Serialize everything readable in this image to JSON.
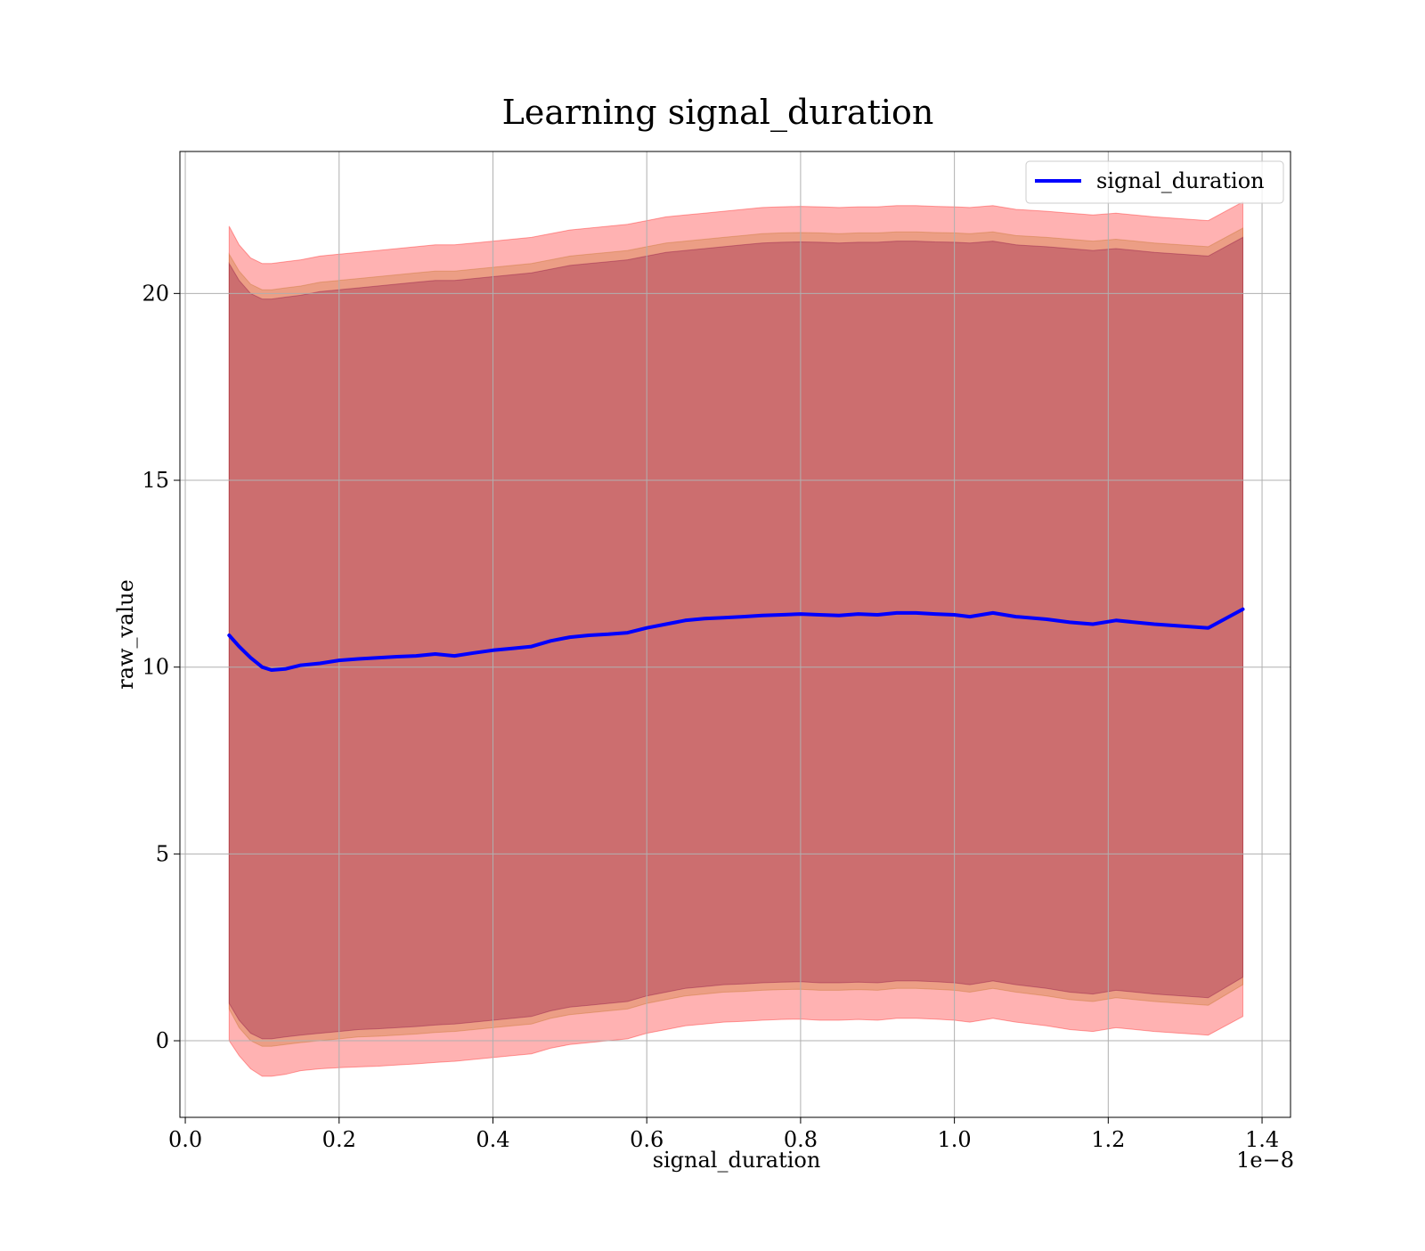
{
  "chart_data": {
    "type": "line",
    "title": "Learning signal_duration",
    "xlabel": "signal_duration",
    "ylabel": "raw_value",
    "x_offset_label": "1e−8",
    "x_ticks": [
      "0.0",
      "0.2",
      "0.4",
      "0.6",
      "0.8",
      "1.0",
      "1.2",
      "1.4"
    ],
    "x_tick_values": [
      0.0,
      0.2,
      0.4,
      0.6,
      0.8,
      1.0,
      1.2,
      1.4
    ],
    "y_ticks": [
      "0",
      "5",
      "10",
      "15",
      "20"
    ],
    "y_tick_values": [
      0,
      5,
      10,
      15,
      20
    ],
    "xlim": [
      -0.007,
      1.437
    ],
    "ylim": [
      -2.05,
      23.8
    ],
    "grid": true,
    "legend": {
      "position": "top-right",
      "entries": [
        "signal_duration"
      ]
    },
    "colors": {
      "line": "#0000ff",
      "band_outer": "#ff0000",
      "band_middle": "#bf6f1f",
      "band_inner": "#800040"
    },
    "x": [
      0.057,
      0.07,
      0.085,
      0.1,
      0.112,
      0.13,
      0.15,
      0.175,
      0.2,
      0.225,
      0.25,
      0.275,
      0.3,
      0.325,
      0.35,
      0.375,
      0.4,
      0.425,
      0.45,
      0.475,
      0.5,
      0.525,
      0.55,
      0.575,
      0.6,
      0.625,
      0.65,
      0.675,
      0.7,
      0.725,
      0.75,
      0.775,
      0.8,
      0.825,
      0.85,
      0.875,
      0.9,
      0.925,
      0.95,
      0.975,
      1.0,
      1.02,
      1.05,
      1.08,
      1.12,
      1.15,
      1.18,
      1.21,
      1.26,
      1.33,
      1.375
    ],
    "series": [
      {
        "name": "signal_duration",
        "values": [
          10.85,
          10.55,
          10.25,
          10.0,
          9.92,
          9.95,
          10.05,
          10.1,
          10.18,
          10.22,
          10.25,
          10.28,
          10.3,
          10.35,
          10.3,
          10.38,
          10.45,
          10.5,
          10.55,
          10.7,
          10.8,
          10.85,
          10.88,
          10.92,
          11.05,
          11.15,
          11.25,
          11.3,
          11.32,
          11.35,
          11.38,
          11.4,
          11.42,
          11.4,
          11.38,
          11.42,
          11.4,
          11.45,
          11.45,
          11.42,
          11.4,
          11.35,
          11.45,
          11.35,
          11.28,
          11.2,
          11.15,
          11.25,
          11.15,
          11.05,
          11.55
        ]
      }
    ],
    "bands": [
      {
        "upper": [
          21.8,
          21.3,
          20.95,
          20.8,
          20.8,
          20.85,
          20.9,
          21.0,
          21.05,
          21.1,
          21.15,
          21.2,
          21.25,
          21.3,
          21.3,
          21.35,
          21.4,
          21.45,
          21.5,
          21.6,
          21.7,
          21.75,
          21.8,
          21.85,
          21.95,
          22.05,
          22.1,
          22.15,
          22.2,
          22.25,
          22.3,
          22.32,
          22.33,
          22.32,
          22.3,
          22.32,
          22.32,
          22.35,
          22.35,
          22.33,
          22.32,
          22.3,
          22.35,
          22.25,
          22.2,
          22.15,
          22.1,
          22.15,
          22.05,
          21.95,
          22.45
        ],
        "lower": [
          0.0,
          -0.4,
          -0.75,
          -0.95,
          -0.95,
          -0.9,
          -0.8,
          -0.75,
          -0.72,
          -0.7,
          -0.68,
          -0.65,
          -0.62,
          -0.58,
          -0.55,
          -0.5,
          -0.45,
          -0.4,
          -0.35,
          -0.2,
          -0.1,
          -0.05,
          0.0,
          0.05,
          0.2,
          0.3,
          0.4,
          0.45,
          0.5,
          0.52,
          0.55,
          0.57,
          0.58,
          0.55,
          0.55,
          0.57,
          0.55,
          0.6,
          0.6,
          0.58,
          0.55,
          0.5,
          0.6,
          0.5,
          0.4,
          0.3,
          0.25,
          0.35,
          0.25,
          0.15,
          0.65
        ]
      },
      {
        "upper": [
          21.05,
          20.6,
          20.25,
          20.1,
          20.1,
          20.15,
          20.2,
          20.3,
          20.35,
          20.4,
          20.45,
          20.5,
          20.55,
          20.6,
          20.6,
          20.65,
          20.7,
          20.75,
          20.8,
          20.9,
          21.0,
          21.05,
          21.1,
          21.15,
          21.25,
          21.35,
          21.4,
          21.45,
          21.5,
          21.55,
          21.6,
          21.62,
          21.63,
          21.62,
          21.6,
          21.62,
          21.62,
          21.65,
          21.65,
          21.63,
          21.62,
          21.6,
          21.65,
          21.55,
          21.5,
          21.45,
          21.4,
          21.45,
          21.35,
          21.25,
          21.75
        ],
        "lower": [
          0.85,
          0.35,
          0.0,
          -0.15,
          -0.15,
          -0.1,
          -0.05,
          0.0,
          0.05,
          0.1,
          0.12,
          0.15,
          0.18,
          0.22,
          0.25,
          0.3,
          0.35,
          0.4,
          0.45,
          0.6,
          0.7,
          0.75,
          0.8,
          0.85,
          1.0,
          1.1,
          1.2,
          1.25,
          1.3,
          1.32,
          1.35,
          1.37,
          1.38,
          1.35,
          1.35,
          1.37,
          1.35,
          1.4,
          1.4,
          1.38,
          1.35,
          1.3,
          1.4,
          1.3,
          1.2,
          1.1,
          1.05,
          1.15,
          1.05,
          0.95,
          1.5
        ]
      },
      {
        "upper": [
          20.8,
          20.35,
          20.0,
          19.85,
          19.85,
          19.9,
          19.95,
          20.05,
          20.1,
          20.15,
          20.2,
          20.25,
          20.3,
          20.35,
          20.35,
          20.4,
          20.45,
          20.5,
          20.55,
          20.65,
          20.75,
          20.8,
          20.85,
          20.9,
          21.0,
          21.1,
          21.15,
          21.2,
          21.25,
          21.3,
          21.35,
          21.37,
          21.38,
          21.37,
          21.35,
          21.37,
          21.37,
          21.4,
          21.4,
          21.38,
          21.37,
          21.35,
          21.4,
          21.3,
          21.25,
          21.2,
          21.15,
          21.2,
          21.1,
          21.0,
          21.5
        ],
        "lower": [
          1.0,
          0.55,
          0.2,
          0.05,
          0.05,
          0.1,
          0.15,
          0.2,
          0.25,
          0.3,
          0.32,
          0.35,
          0.38,
          0.42,
          0.45,
          0.5,
          0.55,
          0.6,
          0.65,
          0.8,
          0.9,
          0.95,
          1.0,
          1.05,
          1.2,
          1.3,
          1.4,
          1.45,
          1.5,
          1.52,
          1.55,
          1.57,
          1.58,
          1.55,
          1.55,
          1.57,
          1.55,
          1.6,
          1.6,
          1.58,
          1.55,
          1.5,
          1.6,
          1.5,
          1.4,
          1.3,
          1.25,
          1.35,
          1.25,
          1.15,
          1.7
        ]
      }
    ]
  }
}
